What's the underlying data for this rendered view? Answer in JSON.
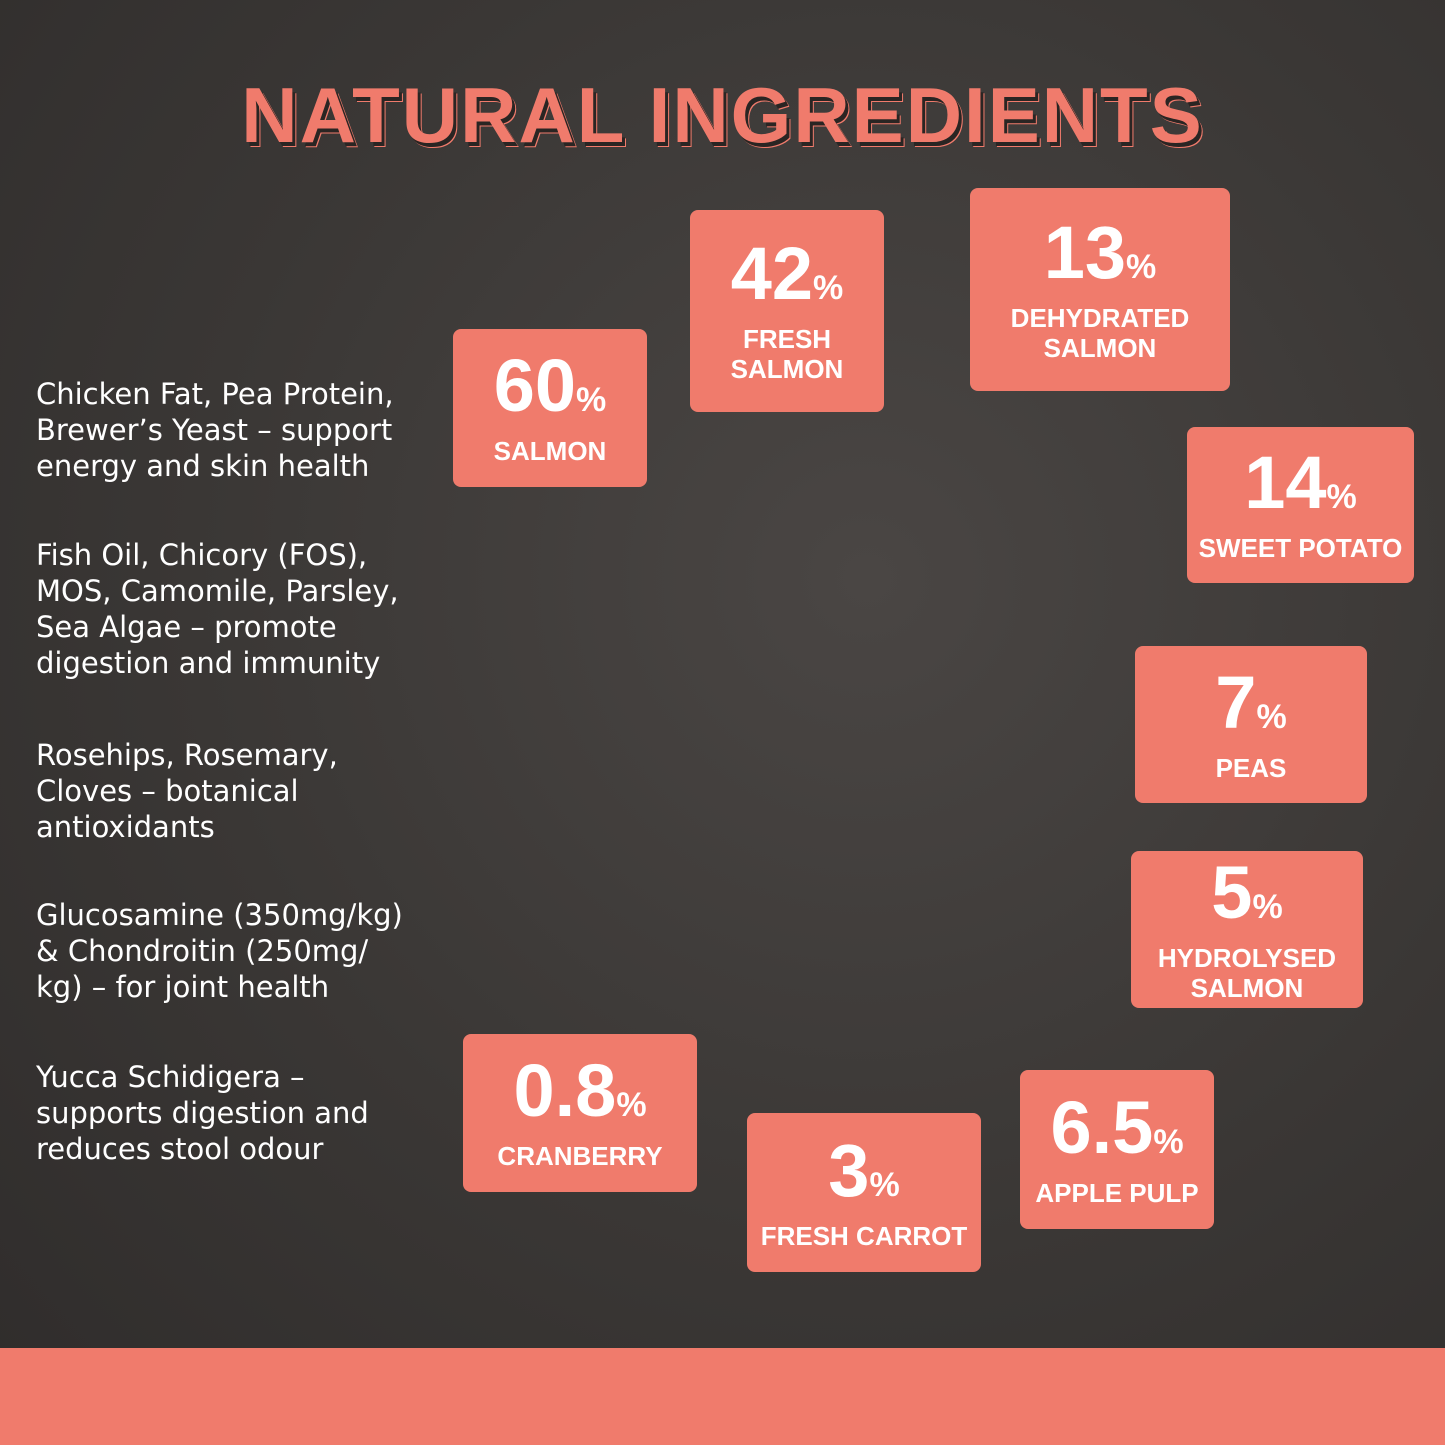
{
  "title": "NATURAL INGREDIENTS",
  "notes": [
    [
      "Chicken Fat, Pea Protein,",
      "Brewer’s Yeast – support",
      "energy and skin health"
    ],
    [
      "Fish Oil, Chicory (FOS),",
      "MOS, Camomile, Parsley,",
      "Sea Algae – promote",
      "digestion and immunity"
    ],
    [
      "Rosehips, Rosemary,",
      "Cloves – botanical",
      "antioxidants"
    ],
    [
      "Glucosamine (350mg/kg)",
      "& Chondroitin (250mg/",
      "kg) – for joint health"
    ],
    [
      "Yucca Schidigera –",
      "supports digestion and",
      "reduces stool odour"
    ]
  ],
  "badges": [
    {
      "value": "60",
      "unit": "%",
      "label": [
        "SALMON"
      ]
    },
    {
      "value": "42",
      "unit": "%",
      "label": [
        "FRESH",
        "SALMON"
      ]
    },
    {
      "value": "13",
      "unit": "%",
      "label": [
        "DEHYDRATED",
        "SALMON"
      ]
    },
    {
      "value": "14",
      "unit": "%",
      "label": [
        "SWEET POTATO"
      ]
    },
    {
      "value": "7",
      "unit": "%",
      "label": [
        "PEAS"
      ]
    },
    {
      "value": "5",
      "unit": "%",
      "label": [
        "HYDROLYSED",
        "SALMON"
      ]
    },
    {
      "value": "0.8",
      "unit": "%",
      "label": [
        "CRANBERRY"
      ]
    },
    {
      "value": "3",
      "unit": "%",
      "label": [
        "FRESH CARROT"
      ]
    },
    {
      "value": "6.5",
      "unit": "%",
      "label": [
        "APPLE PULP"
      ]
    }
  ]
}
